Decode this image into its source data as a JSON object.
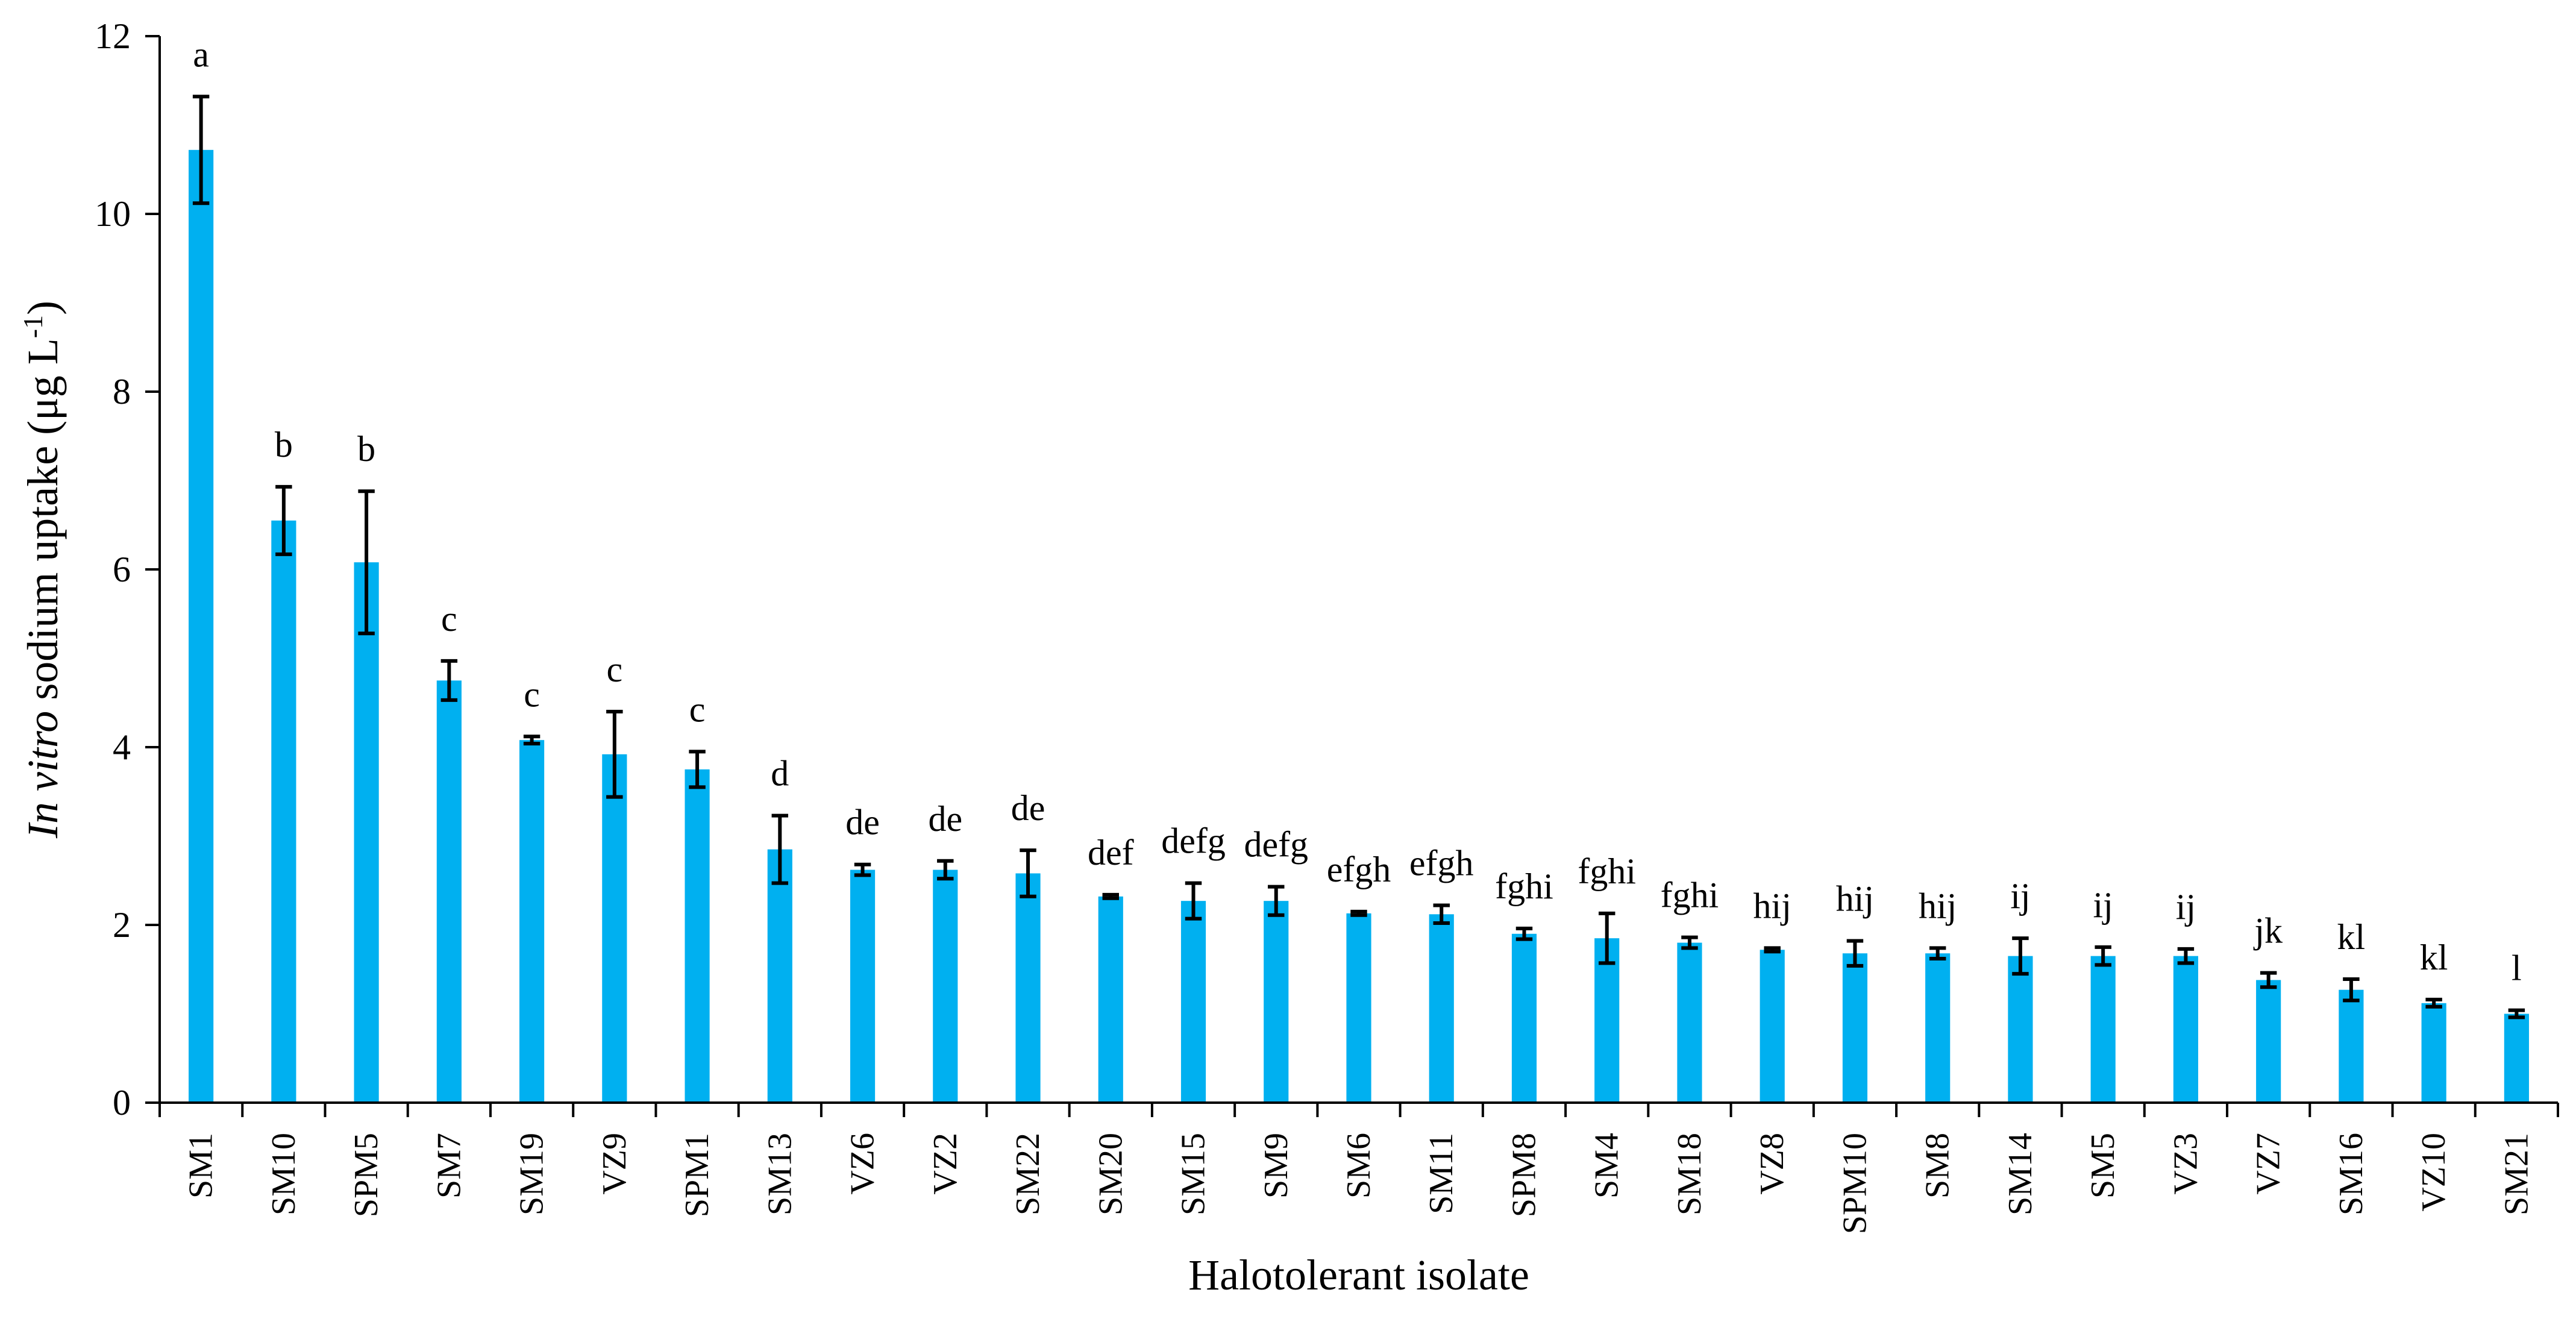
{
  "chart_data": {
    "type": "bar",
    "xlabel": "Halotolerant isolate",
    "ylabel": {
      "italic": "In vitro",
      "text": " sodium uptake (μg L",
      "sup": "-1",
      "close": ")"
    },
    "ylim": [
      0,
      12
    ],
    "yticks": [
      "0",
      "2",
      "4",
      "6",
      "8",
      "10",
      "12"
    ],
    "grid": false,
    "legend": "none",
    "bar_color": "#00B0F0",
    "categories": [
      "SM1",
      "SM10",
      "SPM5",
      "SM7",
      "SM19",
      "VZ9",
      "SPM1",
      "SM13",
      "VZ6",
      "VZ2",
      "SM22",
      "SM20",
      "SM15",
      "SM9",
      "SM6",
      "SM11",
      "SPM8",
      "SM4",
      "SM18",
      "VZ8",
      "SPM10",
      "SM8",
      "SM14",
      "SM5",
      "VZ3",
      "VZ7",
      "SM16",
      "VZ10",
      "SM21"
    ],
    "values": [
      10.72,
      6.55,
      6.08,
      4.75,
      4.08,
      3.92,
      3.75,
      2.85,
      2.62,
      2.62,
      2.58,
      2.32,
      2.27,
      2.27,
      2.13,
      2.12,
      1.9,
      1.85,
      1.8,
      1.72,
      1.68,
      1.68,
      1.65,
      1.65,
      1.65,
      1.38,
      1.27,
      1.12,
      1.0
    ],
    "errors": [
      0.6,
      0.38,
      0.8,
      0.22,
      0.04,
      0.48,
      0.2,
      0.38,
      0.06,
      0.1,
      0.26,
      0.02,
      0.2,
      0.16,
      0.02,
      0.1,
      0.06,
      0.28,
      0.06,
      0.02,
      0.14,
      0.06,
      0.2,
      0.1,
      0.08,
      0.08,
      0.12,
      0.04,
      0.04
    ],
    "significance": [
      "a",
      "b",
      "b",
      "c",
      "c",
      "c",
      "c",
      "d",
      "de",
      "de",
      "de",
      "def",
      "defg",
      "defg",
      "efgh",
      "efgh",
      "fghi",
      "fghi",
      "fghi",
      "hij",
      "hij",
      "hij",
      "ij",
      "ij",
      "ij",
      "jk",
      "kl",
      "kl",
      "l"
    ]
  }
}
